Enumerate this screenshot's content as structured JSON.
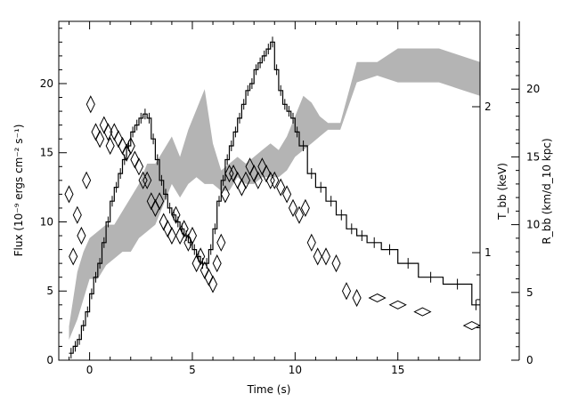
{
  "chart_data": {
    "type": "line",
    "xlabel": "Time (s)",
    "ylabel_left": "Flux (10⁻⁹ ergs cm⁻² s⁻¹)",
    "ylabel_right_1": "T_bb (keV)",
    "ylabel_right_2": "R_bb (km/d_10 kpc)",
    "xlim": [
      -1.5,
      19
    ],
    "xticks": [
      "0",
      "5",
      "10",
      "15"
    ],
    "left_axis": {
      "ylim": [
        0,
        24.5
      ],
      "ticks": [
        "0",
        "5",
        "10",
        "15",
        "20"
      ]
    },
    "temperature_axis": {
      "scale": "log",
      "ticks": [
        "1",
        "2"
      ]
    },
    "radius_axis": {
      "ylim": [
        0,
        25
      ],
      "ticks": [
        "0",
        "5",
        "10",
        "15",
        "20"
      ]
    },
    "series": [
      {
        "kind": "flux histogram",
        "t": [
          -1.0,
          -0.8,
          -0.6,
          -0.4,
          -0.2,
          0.0,
          0.2,
          0.4,
          0.6,
          0.8,
          1.0,
          1.2,
          1.4,
          1.6,
          1.8,
          2.0,
          2.2,
          2.4,
          2.6,
          2.8,
          3.0,
          3.2,
          3.4,
          3.6,
          3.8,
          4.0,
          4.2,
          4.4,
          4.6,
          4.8,
          5.0,
          5.2,
          5.4,
          5.6,
          5.8,
          6.0,
          6.2,
          6.4,
          6.6,
          6.8,
          7.0,
          7.2,
          7.4,
          7.6,
          7.8,
          8.0,
          8.2,
          8.4,
          8.6,
          8.8,
          9.0,
          9.2,
          9.4,
          9.6,
          9.8,
          10.0,
          10.2,
          10.6,
          11.0,
          11.5,
          12.0,
          12.5,
          13.0,
          13.5,
          14.2,
          15.0,
          16.0,
          17.2,
          18.6,
          19.0
        ],
        "flux": [
          0.5,
          1.0,
          1.5,
          2.5,
          3.5,
          4.8,
          6.0,
          7.0,
          8.5,
          10.0,
          11.5,
          12.5,
          13.5,
          14.5,
          15.5,
          16.5,
          17.0,
          17.5,
          17.8,
          17.5,
          16.0,
          14.5,
          13.0,
          12.0,
          11.0,
          10.5,
          10.0,
          9.5,
          9.0,
          8.5,
          8.0,
          7.5,
          7.0,
          7.0,
          8.0,
          9.5,
          11.5,
          13.0,
          14.5,
          15.5,
          16.5,
          17.5,
          18.5,
          19.5,
          20.0,
          21.0,
          21.5,
          22.0,
          22.5,
          23.0,
          21.0,
          19.5,
          18.5,
          18.0,
          17.5,
          16.5,
          15.5,
          13.5,
          12.5,
          11.5,
          10.5,
          9.5,
          9.0,
          8.5,
          8.0,
          7.0,
          6.0,
          5.5,
          4.0,
          4.0
        ]
      },
      {
        "kind": "kT_bb diamonds",
        "t": [
          -1.0,
          -0.8,
          -0.6,
          -0.4,
          -0.15,
          0.05,
          0.3,
          0.5,
          0.7,
          0.9,
          1.0,
          1.2,
          1.4,
          1.6,
          1.8,
          2.0,
          2.2,
          2.4,
          2.6,
          2.8,
          3.0,
          3.2,
          3.4,
          3.6,
          3.8,
          4.0,
          4.2,
          4.4,
          4.6,
          4.8,
          5.0,
          5.2,
          5.4,
          5.6,
          5.8,
          6.0,
          6.2,
          6.4,
          6.6,
          6.8,
          7.0,
          7.2,
          7.4,
          7.6,
          7.8,
          8.0,
          8.2,
          8.4,
          8.6,
          8.8,
          9.0,
          9.3,
          9.6,
          9.9,
          10.2,
          10.5,
          10.8,
          11.1,
          11.5,
          12.0,
          12.5,
          13.0,
          14.0,
          15.0,
          16.2,
          18.6
        ],
        "flux_scale": [
          12.0,
          7.5,
          10.5,
          9.0,
          13.0,
          18.5,
          16.5,
          16.0,
          17.0,
          16.5,
          15.5,
          16.5,
          16.0,
          15.5,
          15.0,
          15.5,
          14.5,
          14.0,
          13.0,
          13.0,
          11.5,
          11.0,
          11.5,
          10.0,
          9.5,
          9.0,
          10.5,
          9.0,
          9.5,
          8.5,
          9.0,
          7.0,
          7.5,
          6.5,
          6.0,
          5.5,
          7.0,
          8.5,
          12.0,
          13.5,
          13.5,
          13.0,
          12.5,
          13.0,
          14.0,
          13.5,
          13.0,
          14.0,
          13.5,
          13.0,
          13.0,
          12.5,
          12.0,
          11.0,
          10.5,
          11.0,
          8.5,
          7.5,
          7.5,
          7.0,
          5.0,
          4.5,
          4.5,
          4.0,
          3.5,
          2.5
        ]
      },
      {
        "kind": "R_bb gray band",
        "t": [
          -1.0,
          -0.6,
          -0.3,
          0.0,
          0.4,
          0.8,
          1.2,
          1.6,
          2.0,
          2.4,
          2.8,
          3.2,
          3.6,
          4.0,
          4.4,
          4.8,
          5.2,
          5.6,
          6.0,
          6.4,
          6.8,
          7.2,
          7.6,
          8.0,
          8.4,
          8.8,
          9.2,
          9.6,
          10.0,
          10.4,
          10.8,
          11.2,
          11.6,
          12.2,
          13.0,
          14.0,
          15.0,
          16.0,
          17.0,
          18.0,
          19.0
        ],
        "r_low": [
          1.5,
          3.0,
          4.5,
          6.0,
          6.0,
          7.0,
          7.5,
          8.0,
          8.0,
          9.0,
          9.5,
          10.0,
          11.5,
          13.0,
          12.0,
          13.0,
          13.5,
          13.0,
          13.0,
          12.5,
          12.5,
          13.5,
          13.0,
          13.0,
          13.5,
          13.5,
          13.5,
          14.0,
          15.0,
          15.5,
          16.0,
          16.5,
          17.0,
          17.0,
          20.5,
          21.0,
          20.5,
          20.5,
          20.5,
          20.0,
          19.5
        ],
        "r_high": [
          2.5,
          6.5,
          8.0,
          9.0,
          9.5,
          10.0,
          10.0,
          11.0,
          12.0,
          13.0,
          14.5,
          14.5,
          15.5,
          16.5,
          15.0,
          17.0,
          18.5,
          20.0,
          16.0,
          14.0,
          14.5,
          15.0,
          14.5,
          15.0,
          15.5,
          16.0,
          15.5,
          16.5,
          18.0,
          19.5,
          19.0,
          18.0,
          17.5,
          17.5,
          22.0,
          22.0,
          23.0,
          23.0,
          23.0,
          22.5,
          22.0
        ]
      }
    ]
  }
}
